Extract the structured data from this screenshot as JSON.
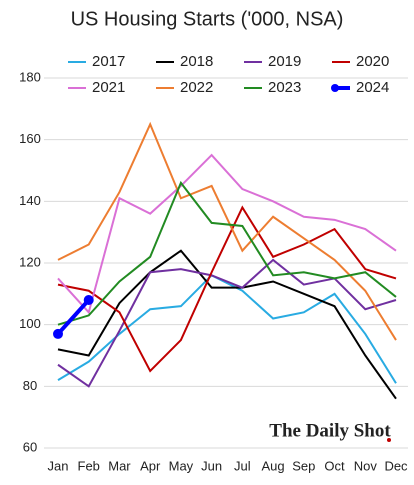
{
  "chart_data": {
    "type": "line",
    "title": "US Housing Starts ('000, NSA)",
    "categories": [
      "Jan",
      "Feb",
      "Mar",
      "Apr",
      "May",
      "Jun",
      "Jul",
      "Aug",
      "Sep",
      "Oct",
      "Nov",
      "Dec"
    ],
    "ylim": [
      60,
      180
    ],
    "yticks": [
      60,
      80,
      100,
      120,
      140,
      160,
      180
    ],
    "grid": true,
    "series": [
      {
        "name": "2017",
        "color": "#29abe2",
        "values": [
          82,
          88,
          97,
          105,
          106,
          116,
          111,
          102,
          104,
          110,
          97,
          81
        ]
      },
      {
        "name": "2018",
        "color": "#000000",
        "values": [
          92,
          90,
          107,
          117,
          124,
          112,
          112,
          114,
          110,
          106,
          90,
          76
        ]
      },
      {
        "name": "2019",
        "color": "#7030a0",
        "values": [
          87,
          80,
          98,
          117,
          118,
          116,
          112,
          121,
          113,
          115,
          105,
          108
        ]
      },
      {
        "name": "2020",
        "color": "#c00000",
        "values": [
          113,
          111,
          104,
          85,
          95,
          117,
          138,
          122,
          126,
          131,
          118,
          115
        ]
      },
      {
        "name": "2021",
        "color": "#da70d6",
        "values": [
          115,
          104,
          141,
          136,
          145,
          155,
          144,
          140,
          135,
          134,
          131,
          124
        ]
      },
      {
        "name": "2022",
        "color": "#ed7d31",
        "values": [
          121,
          126,
          143,
          165,
          141,
          145,
          124,
          135,
          128,
          121,
          111,
          95
        ]
      },
      {
        "name": "2023",
        "color": "#228b22",
        "values": [
          100,
          103,
          114,
          122,
          146,
          133,
          132,
          116,
          117,
          115,
          117,
          109
        ]
      },
      {
        "name": "2024",
        "color": "#0000ff",
        "values": [
          97,
          108,
          null,
          null,
          null,
          null,
          null,
          null,
          null,
          null,
          null,
          null
        ]
      }
    ],
    "source": "The Daily Shot"
  }
}
